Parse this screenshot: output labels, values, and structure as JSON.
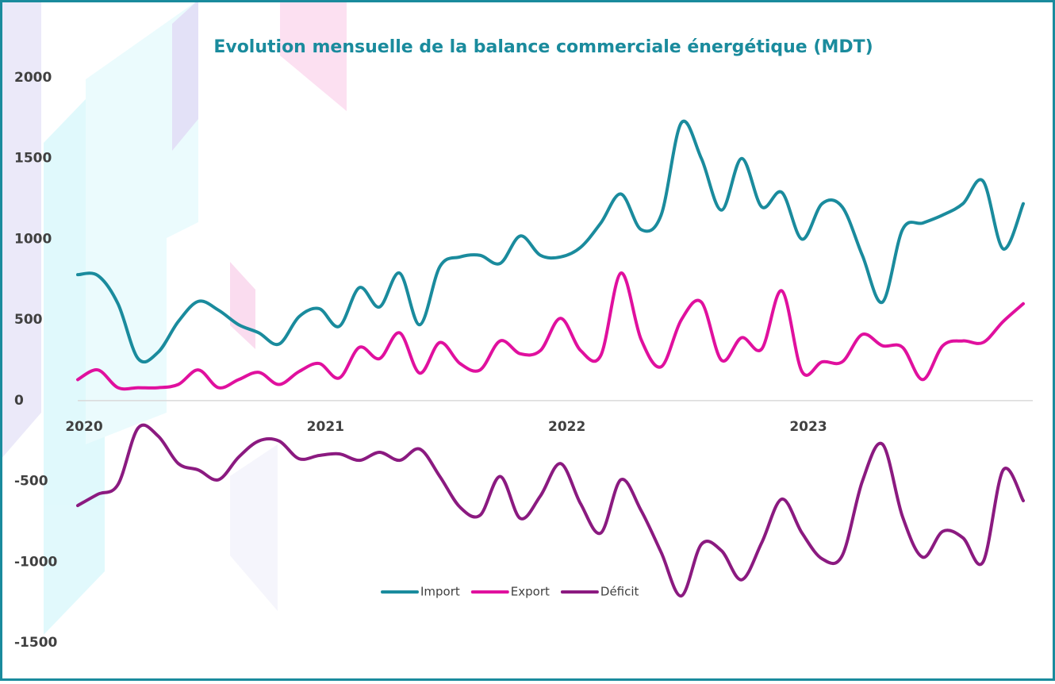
{
  "chart_data": {
    "type": "line",
    "title": "Evolution mensuelle de la balance commerciale énergétique (MDT)",
    "categories": [
      "2020",
      null,
      null,
      null,
      null,
      null,
      null,
      null,
      null,
      null,
      null,
      null,
      "2021",
      null,
      null,
      null,
      null,
      null,
      null,
      null,
      null,
      null,
      null,
      null,
      "2022",
      null,
      null,
      null,
      null,
      null,
      null,
      null,
      null,
      null,
      null,
      null,
      "2023",
      null,
      null,
      null,
      null,
      null,
      null,
      null,
      null,
      null,
      null,
      null
    ],
    "series": [
      {
        "name": "Import",
        "color": "#1a8b9d",
        "values": [
          780,
          775,
          600,
          260,
          300,
          490,
          615,
          560,
          470,
          420,
          350,
          520,
          570,
          460,
          700,
          580,
          790,
          470,
          830,
          890,
          900,
          850,
          1020,
          900,
          890,
          950,
          1100,
          1280,
          1060,
          1150,
          1720,
          1500,
          1180,
          1500,
          1200,
          1290,
          1000,
          1220,
          1200,
          900,
          610,
          1060,
          1100,
          1150,
          1220,
          1360,
          940,
          1220
        ]
      },
      {
        "name": "Export",
        "color": "#e0109e",
        "values": [
          130,
          190,
          80,
          80,
          80,
          100,
          190,
          80,
          130,
          175,
          100,
          180,
          230,
          140,
          330,
          260,
          420,
          170,
          360,
          230,
          190,
          370,
          290,
          310,
          510,
          310,
          280,
          790,
          380,
          210,
          500,
          610,
          250,
          390,
          320,
          680,
          180,
          240,
          240,
          410,
          340,
          330,
          130,
          340,
          370,
          360,
          490,
          600
        ]
      },
      {
        "name": "Déficit",
        "color": "#8b1a80",
        "values": [
          -650,
          -580,
          -520,
          -170,
          -220,
          -390,
          -430,
          -490,
          -350,
          -250,
          -250,
          -360,
          -340,
          -330,
          -370,
          -320,
          -370,
          -300,
          -470,
          -660,
          -710,
          -470,
          -730,
          -590,
          -390,
          -640,
          -820,
          -490,
          -680,
          -940,
          -1210,
          -890,
          -930,
          -1110,
          -880,
          -610,
          -820,
          -980,
          -960,
          -500,
          -270,
          -720,
          -970,
          -810,
          -850,
          -1000,
          -430,
          -620
        ]
      }
    ],
    "ylim": [
      -1500,
      2000
    ],
    "yticks": [
      -1500,
      -1000,
      -500,
      0,
      500,
      1000,
      1500,
      2000
    ],
    "grid": false,
    "legend": "bottom"
  }
}
